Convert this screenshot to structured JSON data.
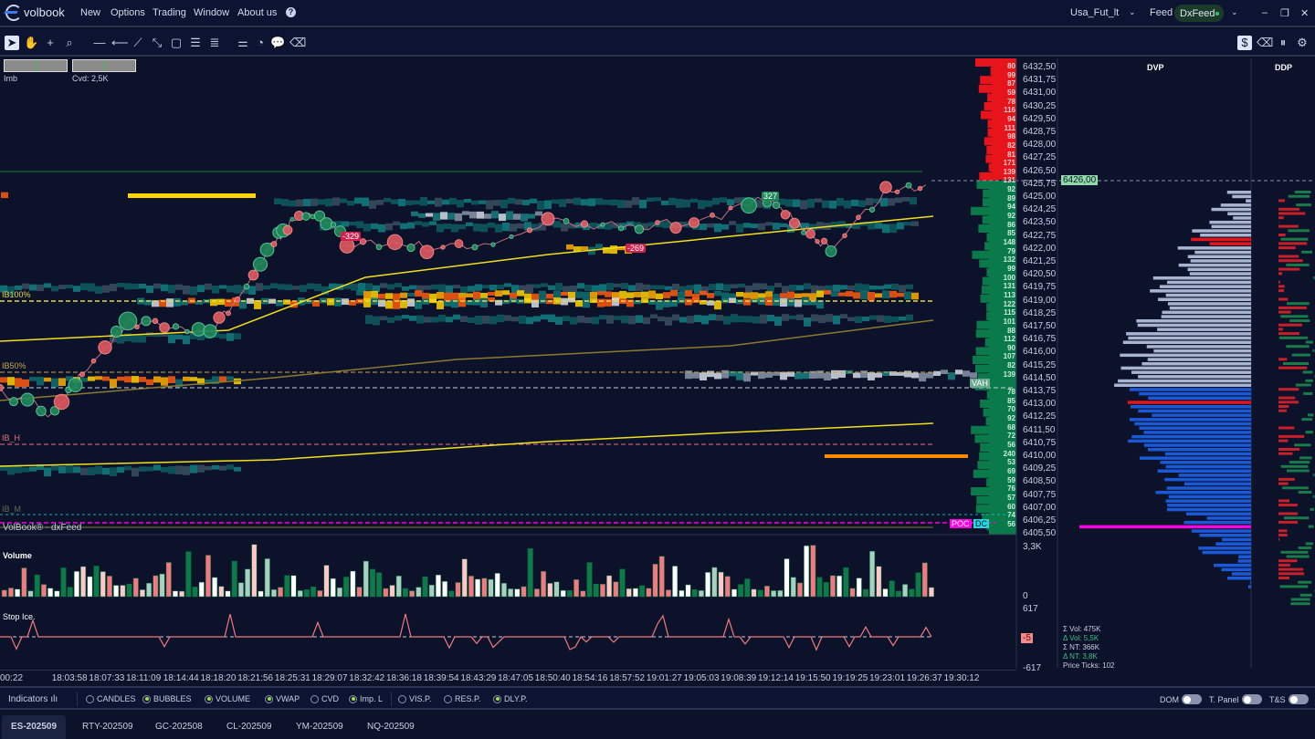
{
  "app": {
    "logo": "volbook",
    "menu": [
      "New",
      "Options",
      "Trading",
      "Window",
      "About us"
    ],
    "help_icon": "question-circle-icon"
  },
  "header": {
    "account": "Usa_Fut_lt",
    "feed_label": "Feed",
    "feed_value": "DxFeed",
    "feed_status_color": "#3fbf6a"
  },
  "toolbar": {
    "left": [
      "cursor-icon",
      "hand-icon",
      "crosshair-icon",
      "zoom-icon",
      "horizontal-line-icon",
      "ray-icon",
      "trend-line-icon",
      "segment-icon",
      "rectangle-icon",
      "lines-icon",
      "lines-dense-icon",
      "settings-sliders-icon",
      "stopwatch-icon",
      "comment-icon",
      "eraser-icon"
    ],
    "right": [
      "dollar-icon",
      "eraser-icon",
      "pause-icon",
      "gear-icon"
    ]
  },
  "chart": {
    "imb_label": "Imb",
    "cvd_label": "Cvd: 2,5K",
    "levels": {
      "ib100": "IB100%",
      "ib50": "IB50%",
      "ib_h": "IB_H",
      "ib_m": "IB_M"
    },
    "watermark": "VolBook® - dxFeed",
    "bubbles": [
      "327",
      "-329",
      "-269"
    ],
    "prices": [
      "6432,50",
      "6431,75",
      "6431,00",
      "6430,25",
      "6429,50",
      "6428,75",
      "6428,00",
      "6427,25",
      "6426,50",
      "6425,75",
      "6425,00",
      "6424,25",
      "6423,50",
      "6422,75",
      "6422,00",
      "6421,25",
      "6420,50",
      "6419,75",
      "6419,00",
      "6418,25",
      "6417,50",
      "6416,75",
      "6416,00",
      "6415,25",
      "6414,50",
      "6413,75",
      "6413,00",
      "6412,25",
      "6411,50",
      "6410,75",
      "6410,00",
      "6409,25",
      "6408,50",
      "6407,75",
      "6407,00",
      "6406,25",
      "6405,50"
    ],
    "current_price": "6426,00",
    "ask_volumes": [
      "80",
      "99",
      "87",
      "59",
      "78",
      "116",
      "94",
      "111",
      "98",
      "82",
      "81",
      "171",
      "139",
      "131"
    ],
    "bid_volumes": [
      "92",
      "89",
      "94",
      "92",
      "86",
      "85",
      "148",
      "79",
      "132",
      "99",
      "100",
      "131",
      "113",
      "122",
      "115",
      "101",
      "88",
      "112",
      "90",
      "107",
      "82",
      "139",
      "VAH",
      "78",
      "85",
      "70",
      "92",
      "68",
      "72",
      "56",
      "240",
      "53",
      "69",
      "59",
      "76",
      "57",
      "60",
      "74",
      "56"
    ],
    "poc_label": "POC",
    "dc_label": "DC",
    "colors": {
      "ask": "#e8141c",
      "bid": "#0a7a4a",
      "vwap": "#f2e01e",
      "poc": "#ff00e0"
    }
  },
  "volume_pane": {
    "title": "Volume",
    "max": "3,3K",
    "min": "0"
  },
  "stop_ice_pane": {
    "title": "Stop Ice.",
    "max": "617",
    "value": "-5",
    "min": "-617"
  },
  "time_axis": [
    "00:22",
    "18:03:58",
    "18:07:33",
    "18:11:09",
    "18:14:44",
    "18:18:20",
    "18:21:56",
    "18:25:31",
    "18:29:07",
    "18:32:42",
    "18:36:18",
    "18:39:54",
    "18:43:29",
    "18:47:05",
    "18:50:40",
    "18:54:16",
    "18:57:52",
    "19:01:27",
    "19:05:03",
    "19:08:39",
    "19:12:14",
    "19:15:50",
    "19:19:25",
    "19:23:01",
    "19:26:37",
    "19:30:12"
  ],
  "profiles": {
    "dvp_title": "DVP",
    "ddp_title": "DDP",
    "stats": {
      "vol": "Σ Vol: 475K",
      "dvol": "Δ Vol: 5,5K",
      "nt": "Σ NT: 366K",
      "dnt": "Δ NT: 3,8K",
      "ticks": "Price Ticks: 102"
    }
  },
  "indicators": {
    "label": "Indicators",
    "options": [
      {
        "label": "CANDLES",
        "on": false
      },
      {
        "label": "BUBBLES",
        "on": true
      },
      {
        "label": "VOLUME",
        "on": true
      },
      {
        "label": "VWAP",
        "on": true
      },
      {
        "label": "CVD",
        "on": false
      },
      {
        "label": "Imp. L",
        "on": true
      }
    ],
    "profiles": [
      {
        "label": "VIS.P.",
        "on": false
      },
      {
        "label": "RES.P.",
        "on": false
      },
      {
        "label": "DLY.P.",
        "on": true
      }
    ],
    "toggles": [
      "DOM",
      "T. Panel",
      "T&S"
    ]
  },
  "tabs": [
    {
      "label": "ES-202509",
      "active": true
    },
    {
      "label": "RTY-202509"
    },
    {
      "label": "GC-202508"
    },
    {
      "label": "CL-202509"
    },
    {
      "label": "YM-202509"
    },
    {
      "label": "NQ-202509"
    }
  ]
}
